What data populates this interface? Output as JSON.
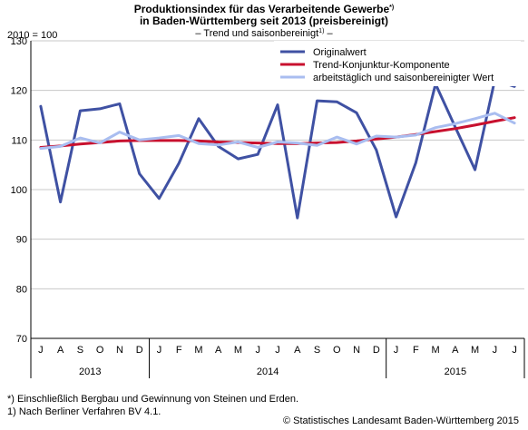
{
  "title_line1": "Produktionsindex für das Verarbeitende Gewerbe",
  "title_line1_sup": "*)",
  "title_line2": "in Baden-Württemberg seit 2013 (preisbereinigt)",
  "subtitle": "– Trend und saisonbereinigt",
  "subtitle_sup": "1)",
  "subtitle_end": " –",
  "base_label": "2010 = 100",
  "footnotes": [
    "*) Einschließlich Bergbau und Gewinnung von Steinen und Erden.",
    "1) Nach Berliner Verfahren BV 4.1."
  ],
  "credit": "© Statistisches Landesamt Baden-Württemberg 2015",
  "colors": {
    "original": "#3f51a3",
    "trend": "#c8102e",
    "seasonal": "#a9bdf0",
    "grid": "#c8c8c8",
    "axis": "#000000"
  },
  "chart_data": {
    "type": "line",
    "ylim": [
      70,
      130
    ],
    "yticks": [
      70,
      80,
      90,
      100,
      110,
      120,
      130
    ],
    "months": [
      "J",
      "A",
      "S",
      "O",
      "N",
      "D",
      "J",
      "F",
      "M",
      "A",
      "M",
      "J",
      "J",
      "A",
      "S",
      "O",
      "N",
      "D",
      "J",
      "F",
      "M",
      "A",
      "M",
      "J",
      "J"
    ],
    "years": [
      {
        "label": "2013",
        "from": 0,
        "to": 5
      },
      {
        "label": "2014",
        "from": 6,
        "to": 17
      },
      {
        "label": "2015",
        "from": 18,
        "to": 24
      }
    ],
    "grid": true,
    "legend_position": "top-right",
    "series": [
      {
        "name": "Originalwert",
        "color_key": "original",
        "values": [
          116.8,
          97.5,
          115.9,
          116.3,
          117.3,
          103.2,
          98.2,
          105.3,
          114.3,
          108.7,
          106.2,
          107.1,
          117.1,
          94.3,
          117.9,
          117.7,
          115.5,
          108.0,
          94.5,
          105.4,
          121.3,
          112.6,
          104.0,
          122.1,
          120.8
        ]
      },
      {
        "name": "Trend-Konjunktur-Komponente",
        "color_key": "trend",
        "values": [
          108.5,
          108.8,
          109.2,
          109.5,
          109.8,
          109.9,
          109.9,
          109.9,
          109.8,
          109.6,
          109.5,
          109.4,
          109.3,
          109.3,
          109.4,
          109.5,
          109.8,
          110.2,
          110.6,
          111.1,
          111.7,
          112.3,
          113.0,
          113.8,
          114.5
        ]
      },
      {
        "name": "arbeitstäglich und saisonbereinigter Wert",
        "color_key": "seasonal",
        "values": [
          108.3,
          108.7,
          110.4,
          109.4,
          111.6,
          110.0,
          110.4,
          110.9,
          109.3,
          109.0,
          109.6,
          108.5,
          109.6,
          109.4,
          108.9,
          110.6,
          109.2,
          110.8,
          110.6,
          111.0,
          112.5,
          113.3,
          114.3,
          115.4,
          113.4
        ]
      }
    ]
  }
}
